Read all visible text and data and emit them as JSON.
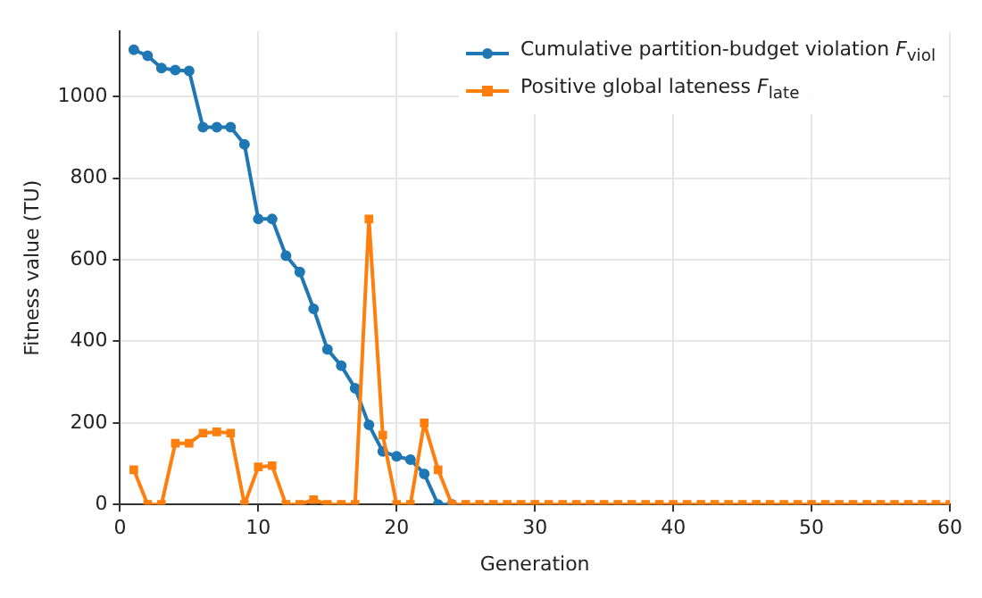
{
  "chart_data": {
    "type": "line",
    "xlabel": "Generation",
    "ylabel": "Fitness value (TU)",
    "x": [
      1,
      2,
      3,
      4,
      5,
      6,
      7,
      8,
      9,
      10,
      11,
      12,
      13,
      14,
      15,
      16,
      17,
      18,
      19,
      20,
      21,
      22,
      23,
      24,
      25,
      26,
      27,
      28,
      29,
      30,
      31,
      32,
      33,
      34,
      35,
      36,
      37,
      38,
      39,
      40,
      41,
      42,
      43,
      44,
      45,
      46,
      47,
      48,
      49,
      50,
      51,
      52,
      53,
      54,
      55,
      56,
      57,
      58,
      59,
      60
    ],
    "series": [
      {
        "name": "Cumulative partition-budget violation F$_{viol}$",
        "color": "#1f77b4",
        "marker": "circle",
        "values": [
          1115,
          1100,
          1070,
          1065,
          1063,
          925,
          925,
          925,
          883,
          700,
          700,
          610,
          570,
          480,
          380,
          340,
          285,
          195,
          130,
          118,
          110,
          75,
          0,
          0,
          null,
          null,
          null,
          null,
          null,
          null,
          null,
          null,
          null,
          null,
          null,
          null,
          null,
          null,
          null,
          null,
          null,
          null,
          null,
          null,
          null,
          null,
          null,
          null,
          null,
          null,
          null,
          null,
          null,
          null,
          null,
          null,
          null,
          null,
          null,
          null
        ]
      },
      {
        "name": "Positive global lateness F$_{late}$",
        "color": "#ff7f0e",
        "marker": "square",
        "values": [
          85,
          0,
          0,
          150,
          150,
          175,
          178,
          175,
          0,
          92,
          95,
          0,
          0,
          12,
          0,
          0,
          0,
          700,
          170,
          0,
          0,
          200,
          85,
          0,
          0,
          0,
          0,
          0,
          0,
          0,
          0,
          0,
          0,
          0,
          0,
          0,
          0,
          0,
          0,
          0,
          0,
          0,
          0,
          0,
          0,
          0,
          0,
          0,
          0,
          0,
          0,
          0,
          0,
          0,
          0,
          0,
          0,
          0,
          0,
          0
        ]
      }
    ],
    "xlim": [
      0,
      60
    ],
    "xticks": [
      0,
      10,
      20,
      30,
      40,
      50,
      60
    ],
    "ylim": [
      0,
      1160
    ],
    "yticks": [
      0,
      200,
      400,
      600,
      800,
      1000
    ],
    "grid": true,
    "legend": "top right"
  }
}
